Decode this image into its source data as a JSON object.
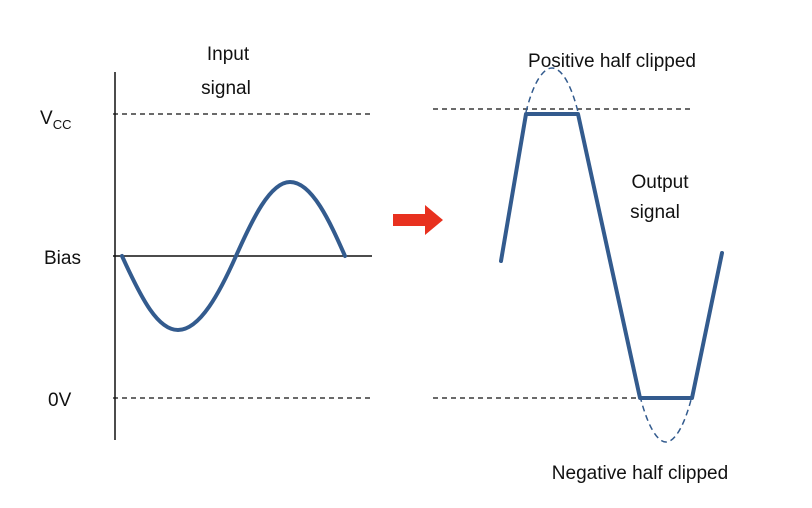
{
  "input": {
    "title_line1": "Input",
    "title_line2": "signal",
    "axis": {
      "vcc_main": "V",
      "vcc_sub": "CC",
      "bias": "Bias",
      "zero": "0V"
    }
  },
  "output": {
    "title_line1": "Output",
    "title_line2": "signal",
    "positive_clip_label": "Positive half clipped",
    "negative_clip_label": "Negative half clipped"
  },
  "colors": {
    "waveform": "#335b8e",
    "arrow": "#e8311f",
    "lines": "#111111"
  },
  "icons": {
    "transition": "right-arrow-icon"
  }
}
